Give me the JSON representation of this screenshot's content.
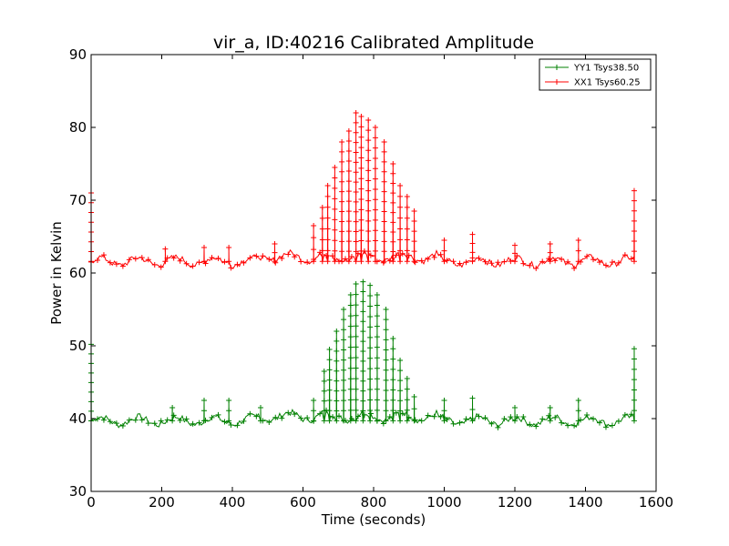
{
  "chart_data": {
    "type": "line",
    "title": "vir_a, ID:40216 Calibrated Amplitude",
    "xlabel": "Time (seconds)",
    "ylabel": "Power in Kelvin",
    "xlim": [
      0,
      1600
    ],
    "ylim": [
      30,
      90
    ],
    "xticks": [
      0,
      200,
      400,
      600,
      800,
      1000,
      1200,
      1400,
      1600
    ],
    "yticks": [
      30,
      40,
      50,
      60,
      70,
      80,
      90
    ],
    "xtick_labels": [
      "0",
      "200",
      "400",
      "600",
      "800",
      "1000",
      "1200",
      "1400",
      "1600"
    ],
    "ytick_labels": [
      "30",
      "40",
      "50",
      "60",
      "70",
      "80",
      "90"
    ],
    "grid": false,
    "legend_position": "top-right",
    "markers": "+",
    "series": [
      {
        "name": "YY1 Tsys38.50",
        "color": "#008000",
        "baseline": 39.7,
        "start_spike": 50.2,
        "end_spike": 49.6,
        "spikes": [
          {
            "x": 630,
            "y": 42.5
          },
          {
            "x": 660,
            "y": 46.5
          },
          {
            "x": 675,
            "y": 49.5
          },
          {
            "x": 695,
            "y": 52.0
          },
          {
            "x": 715,
            "y": 55.0
          },
          {
            "x": 735,
            "y": 57.0
          },
          {
            "x": 750,
            "y": 58.5
          },
          {
            "x": 770,
            "y": 58.8
          },
          {
            "x": 790,
            "y": 58.3
          },
          {
            "x": 810,
            "y": 57.0
          },
          {
            "x": 835,
            "y": 55.0
          },
          {
            "x": 855,
            "y": 51.0
          },
          {
            "x": 875,
            "y": 48.0
          },
          {
            "x": 895,
            "y": 45.5
          },
          {
            "x": 915,
            "y": 43.0
          }
        ],
        "scattered_spikes": [
          {
            "x": 230,
            "y": 41.5
          },
          {
            "x": 320,
            "y": 42.5
          },
          {
            "x": 390,
            "y": 42.5
          },
          {
            "x": 480,
            "y": 41.5
          },
          {
            "x": 1000,
            "y": 42.5
          },
          {
            "x": 1080,
            "y": 42.8
          },
          {
            "x": 1200,
            "y": 41.5
          },
          {
            "x": 1300,
            "y": 41.5
          },
          {
            "x": 1380,
            "y": 42.5
          }
        ]
      },
      {
        "name": "XX1 Tsys60.25",
        "color": "#ff0000",
        "baseline": 61.6,
        "start_spike": 71.0,
        "end_spike": 71.3,
        "spikes": [
          {
            "x": 630,
            "y": 66.5
          },
          {
            "x": 655,
            "y": 69.0
          },
          {
            "x": 670,
            "y": 72.0
          },
          {
            "x": 690,
            "y": 74.5
          },
          {
            "x": 710,
            "y": 78.0
          },
          {
            "x": 730,
            "y": 79.5
          },
          {
            "x": 750,
            "y": 82.0
          },
          {
            "x": 765,
            "y": 81.5
          },
          {
            "x": 785,
            "y": 81.0
          },
          {
            "x": 805,
            "y": 80.0
          },
          {
            "x": 830,
            "y": 78.0
          },
          {
            "x": 855,
            "y": 75.0
          },
          {
            "x": 875,
            "y": 72.0
          },
          {
            "x": 895,
            "y": 70.5
          },
          {
            "x": 915,
            "y": 68.5
          }
        ],
        "scattered_spikes": [
          {
            "x": 210,
            "y": 63.3
          },
          {
            "x": 320,
            "y": 63.5
          },
          {
            "x": 390,
            "y": 63.5
          },
          {
            "x": 520,
            "y": 64.0
          },
          {
            "x": 1000,
            "y": 64.5
          },
          {
            "x": 1080,
            "y": 65.3
          },
          {
            "x": 1200,
            "y": 63.8
          },
          {
            "x": 1300,
            "y": 64.0
          },
          {
            "x": 1380,
            "y": 64.5
          }
        ]
      }
    ]
  }
}
